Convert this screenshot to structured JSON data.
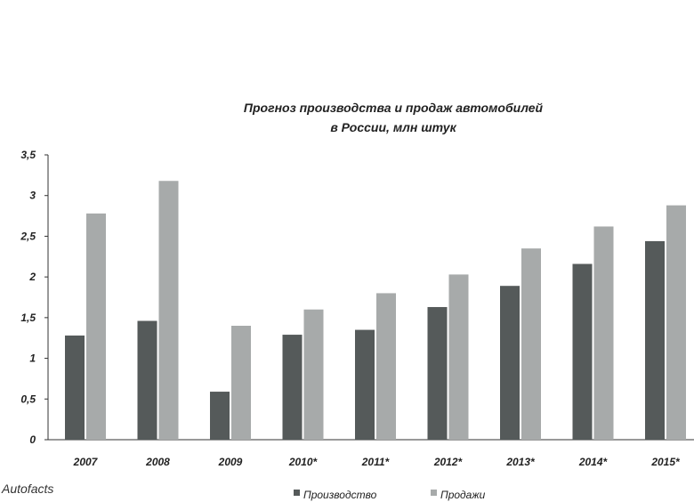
{
  "chart_data": {
    "type": "bar",
    "title": [
      "Прогноз производства и продаж автомобилей",
      "в России, млн штук"
    ],
    "categories": [
      "2007",
      "2008",
      "2009",
      "2010*",
      "2011*",
      "2012*",
      "2013*",
      "2014*",
      "2015*"
    ],
    "series": [
      {
        "name": "Производство",
        "color": "#555a5a",
        "values": [
          1.28,
          1.46,
          0.59,
          1.29,
          1.35,
          1.63,
          1.89,
          2.16,
          2.44
        ]
      },
      {
        "name": "Продажи",
        "color": "#a7aaaa",
        "values": [
          2.78,
          3.18,
          1.4,
          1.6,
          1.8,
          2.03,
          2.35,
          2.62,
          2.88
        ]
      }
    ],
    "y_ticks": [
      "0",
      "0,5",
      "1",
      "1,5",
      "2",
      "2,5",
      "3",
      "3,5"
    ],
    "ylim": [
      0,
      3.5
    ],
    "xlabel": "",
    "ylabel": "",
    "grid": false,
    "legend_position": "bottom"
  },
  "source": "Autofacts"
}
